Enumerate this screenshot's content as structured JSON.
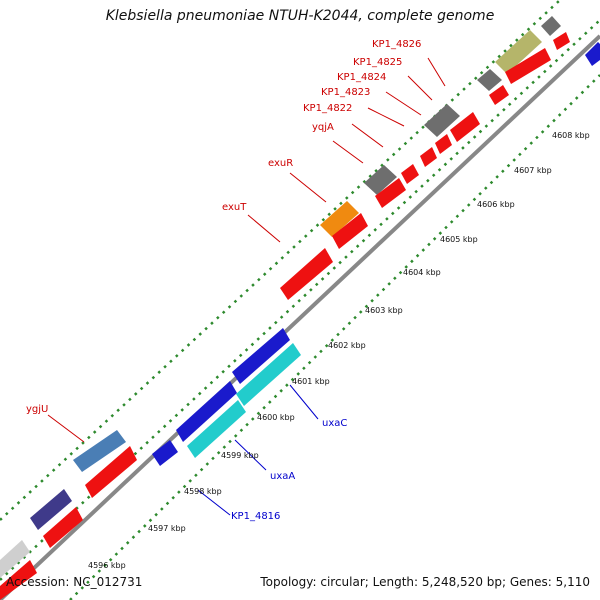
{
  "title": "Klebsiella pneumoniae NTUH-K2044, complete genome",
  "accession": "Accession: NC_012731",
  "summary": "Topology: circular; Length: 5,248,520 bp; Genes: 5,110",
  "ticks": [
    "4596 kbp",
    "4597 kbp",
    "4598 kbp",
    "4599 kbp",
    "4600 kbp",
    "4601 kbp",
    "4602 kbp",
    "4603 kbp",
    "4604 kbp",
    "4605 kbp",
    "4606 kbp",
    "4607 kbp",
    "4608 kbp"
  ],
  "labels": {
    "kp1_4826": "KP1_4826",
    "kp1_4825": "KP1_4825",
    "kp1_4824": "KP1_4824",
    "kp1_4823": "KP1_4823",
    "kp1_4822": "KP1_4822",
    "yqjA": "yqjA",
    "exuR": "exuR",
    "exuT": "exuT",
    "ygjU": "ygjU",
    "uxaC": "uxaC",
    "uxaA": "uxaA",
    "kp1_4816": "KP1_4816"
  },
  "colors": {
    "forward_label": "#cc0000",
    "reverse_label": "#0000cc",
    "gene_red": "#ee1111",
    "gene_blue": "#1a1acc",
    "gene_cyan": "#22cccc",
    "gene_gray": "#6e6e6e",
    "gene_orange": "#f08a10",
    "gene_olive": "#b5b56a",
    "gene_steelblue": "#4a7eb5",
    "gene_purple": "#3f3a8a",
    "gene_lightgray": "#cfcfcf",
    "track_gray": "#8a8a8a",
    "dots_green": "#2e8a2e"
  }
}
